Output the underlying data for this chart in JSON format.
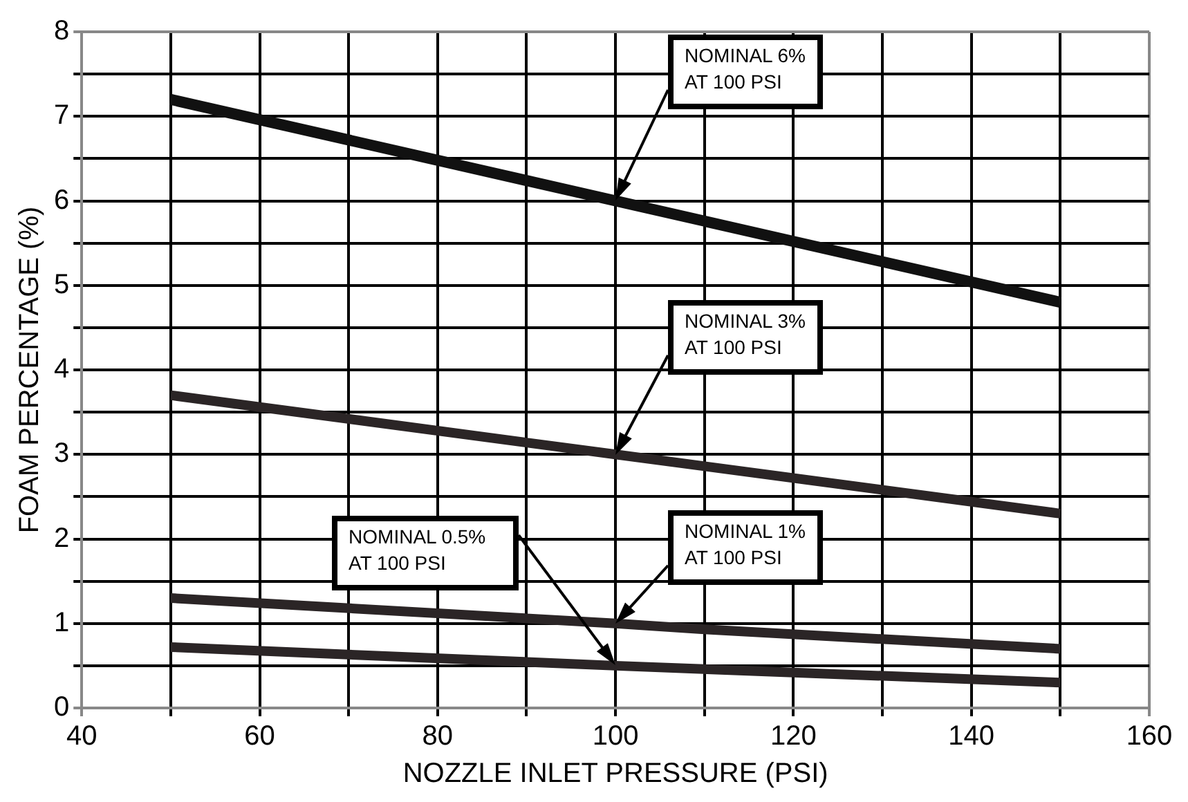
{
  "chart_data": {
    "type": "line",
    "xlabel": "NOZZLE INLET PRESSURE (PSI)",
    "ylabel": "FOAM PERCENTAGE (%)",
    "xlim": [
      40,
      160
    ],
    "xticks": [
      40,
      {
        "value": 50,
        "label": null
      },
      60,
      {
        "value": 70,
        "label": null
      },
      80,
      {
        "value": 90,
        "label": null
      },
      100,
      {
        "value": 110,
        "label": null
      },
      120,
      {
        "value": 130,
        "label": null
      },
      140,
      {
        "value": 150,
        "label": null
      },
      160
    ],
    "ylim": [
      0,
      8
    ],
    "yticks": [
      0,
      {
        "value": 0.5,
        "label": null
      },
      1,
      {
        "value": 1.5,
        "label": null
      },
      2,
      {
        "value": 2.5,
        "label": null
      },
      3,
      {
        "value": 3.5,
        "label": null
      },
      4,
      {
        "value": 4.5,
        "label": null
      },
      5,
      {
        "value": 5.5,
        "label": null
      },
      6,
      {
        "value": 6.5,
        "label": null
      },
      7,
      {
        "value": 7.5,
        "label": null
      },
      8
    ],
    "grid": true,
    "legend": false,
    "marker": "none",
    "line_style": "solid",
    "series": [
      {
        "color": "#111111",
        "x": [
          50,
          100,
          150
        ],
        "values": [
          7.2,
          6.0,
          4.8
        ]
      },
      {
        "color": "#2b2526",
        "x": [
          50,
          100,
          150
        ],
        "values": [
          3.7,
          3.0,
          2.3
        ]
      },
      {
        "color": "#2b2526",
        "x": [
          50,
          100,
          110,
          150
        ],
        "values": [
          1.3,
          1.0,
          0.93,
          0.7
        ]
      },
      {
        "color": "#2b2526",
        "x": [
          50,
          100,
          150
        ],
        "values": [
          0.72,
          0.5,
          0.3
        ]
      }
    ],
    "annotations": [
      "NOMINAL 6%\nAT 100 PSI",
      "NOMINAL 3%\nAT 100 PSI",
      "NOMINAL 1%\nAT 100 PSI",
      "NOMINAL 0.5%\nAT 100 PSI"
    ]
  }
}
